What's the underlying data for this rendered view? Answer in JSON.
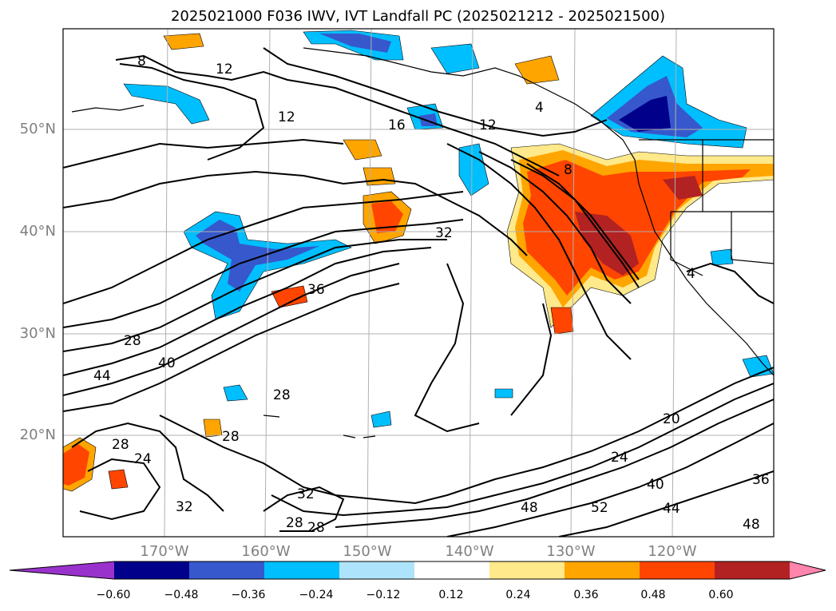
{
  "title": "2025021000 F036 IWV, IVT Landfall PC (2025021212 - 2025021500)",
  "map": {
    "lat_labels": [
      "50°N",
      "40°N",
      "30°N",
      "20°N"
    ],
    "lon_labels": [
      "170°W",
      "160°W",
      "150°W",
      "140°W",
      "130°W",
      "120°W"
    ],
    "contour_labels": [
      "8",
      "12",
      "12",
      "16",
      "12",
      "4",
      "8",
      "32",
      "36",
      "28",
      "40",
      "44",
      "28",
      "28",
      "24",
      "28",
      "32",
      "32",
      "28",
      "28",
      "48",
      "52",
      "24",
      "20",
      "40",
      "44",
      "36",
      "48",
      "4"
    ]
  },
  "colorbar": {
    "ticks": [
      "−0.60",
      "−0.48",
      "−0.36",
      "−0.24",
      "−0.12",
      "0.12",
      "0.24",
      "0.36",
      "0.48",
      "0.60"
    ],
    "colors": [
      "#9932cc",
      "#00008b",
      "#3658cc",
      "#00bfff",
      "#aee4fb",
      "#ffffff",
      "#ffe98a",
      "#ffa500",
      "#ff4500",
      "#b22222",
      "#ff85ad"
    ]
  }
}
